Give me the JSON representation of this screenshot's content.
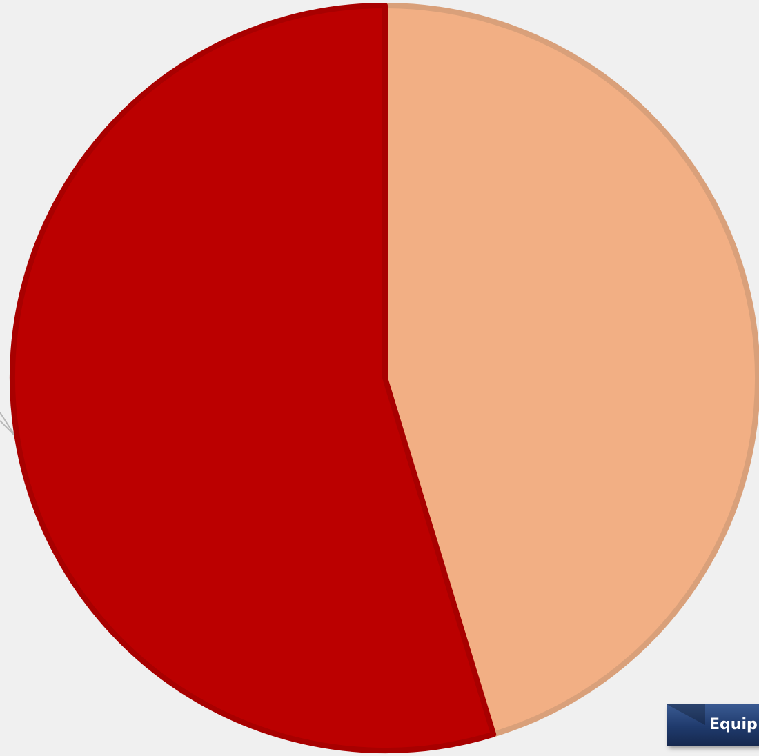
{
  "chart_data": {
    "type": "pie",
    "title": "",
    "start_angle_deg": 0,
    "direction": "clockwise",
    "slices": [
      {
        "label": "",
        "value": 45.3,
        "color": "#f2af84",
        "stroke": "#d9a07a"
      },
      {
        "label": "",
        "value": 54.7,
        "color": "#bb0000",
        "stroke": "#a80000"
      }
    ],
    "leader_line_color": "#b8b8b8"
  },
  "labels": {
    "category_label": "Equip"
  }
}
